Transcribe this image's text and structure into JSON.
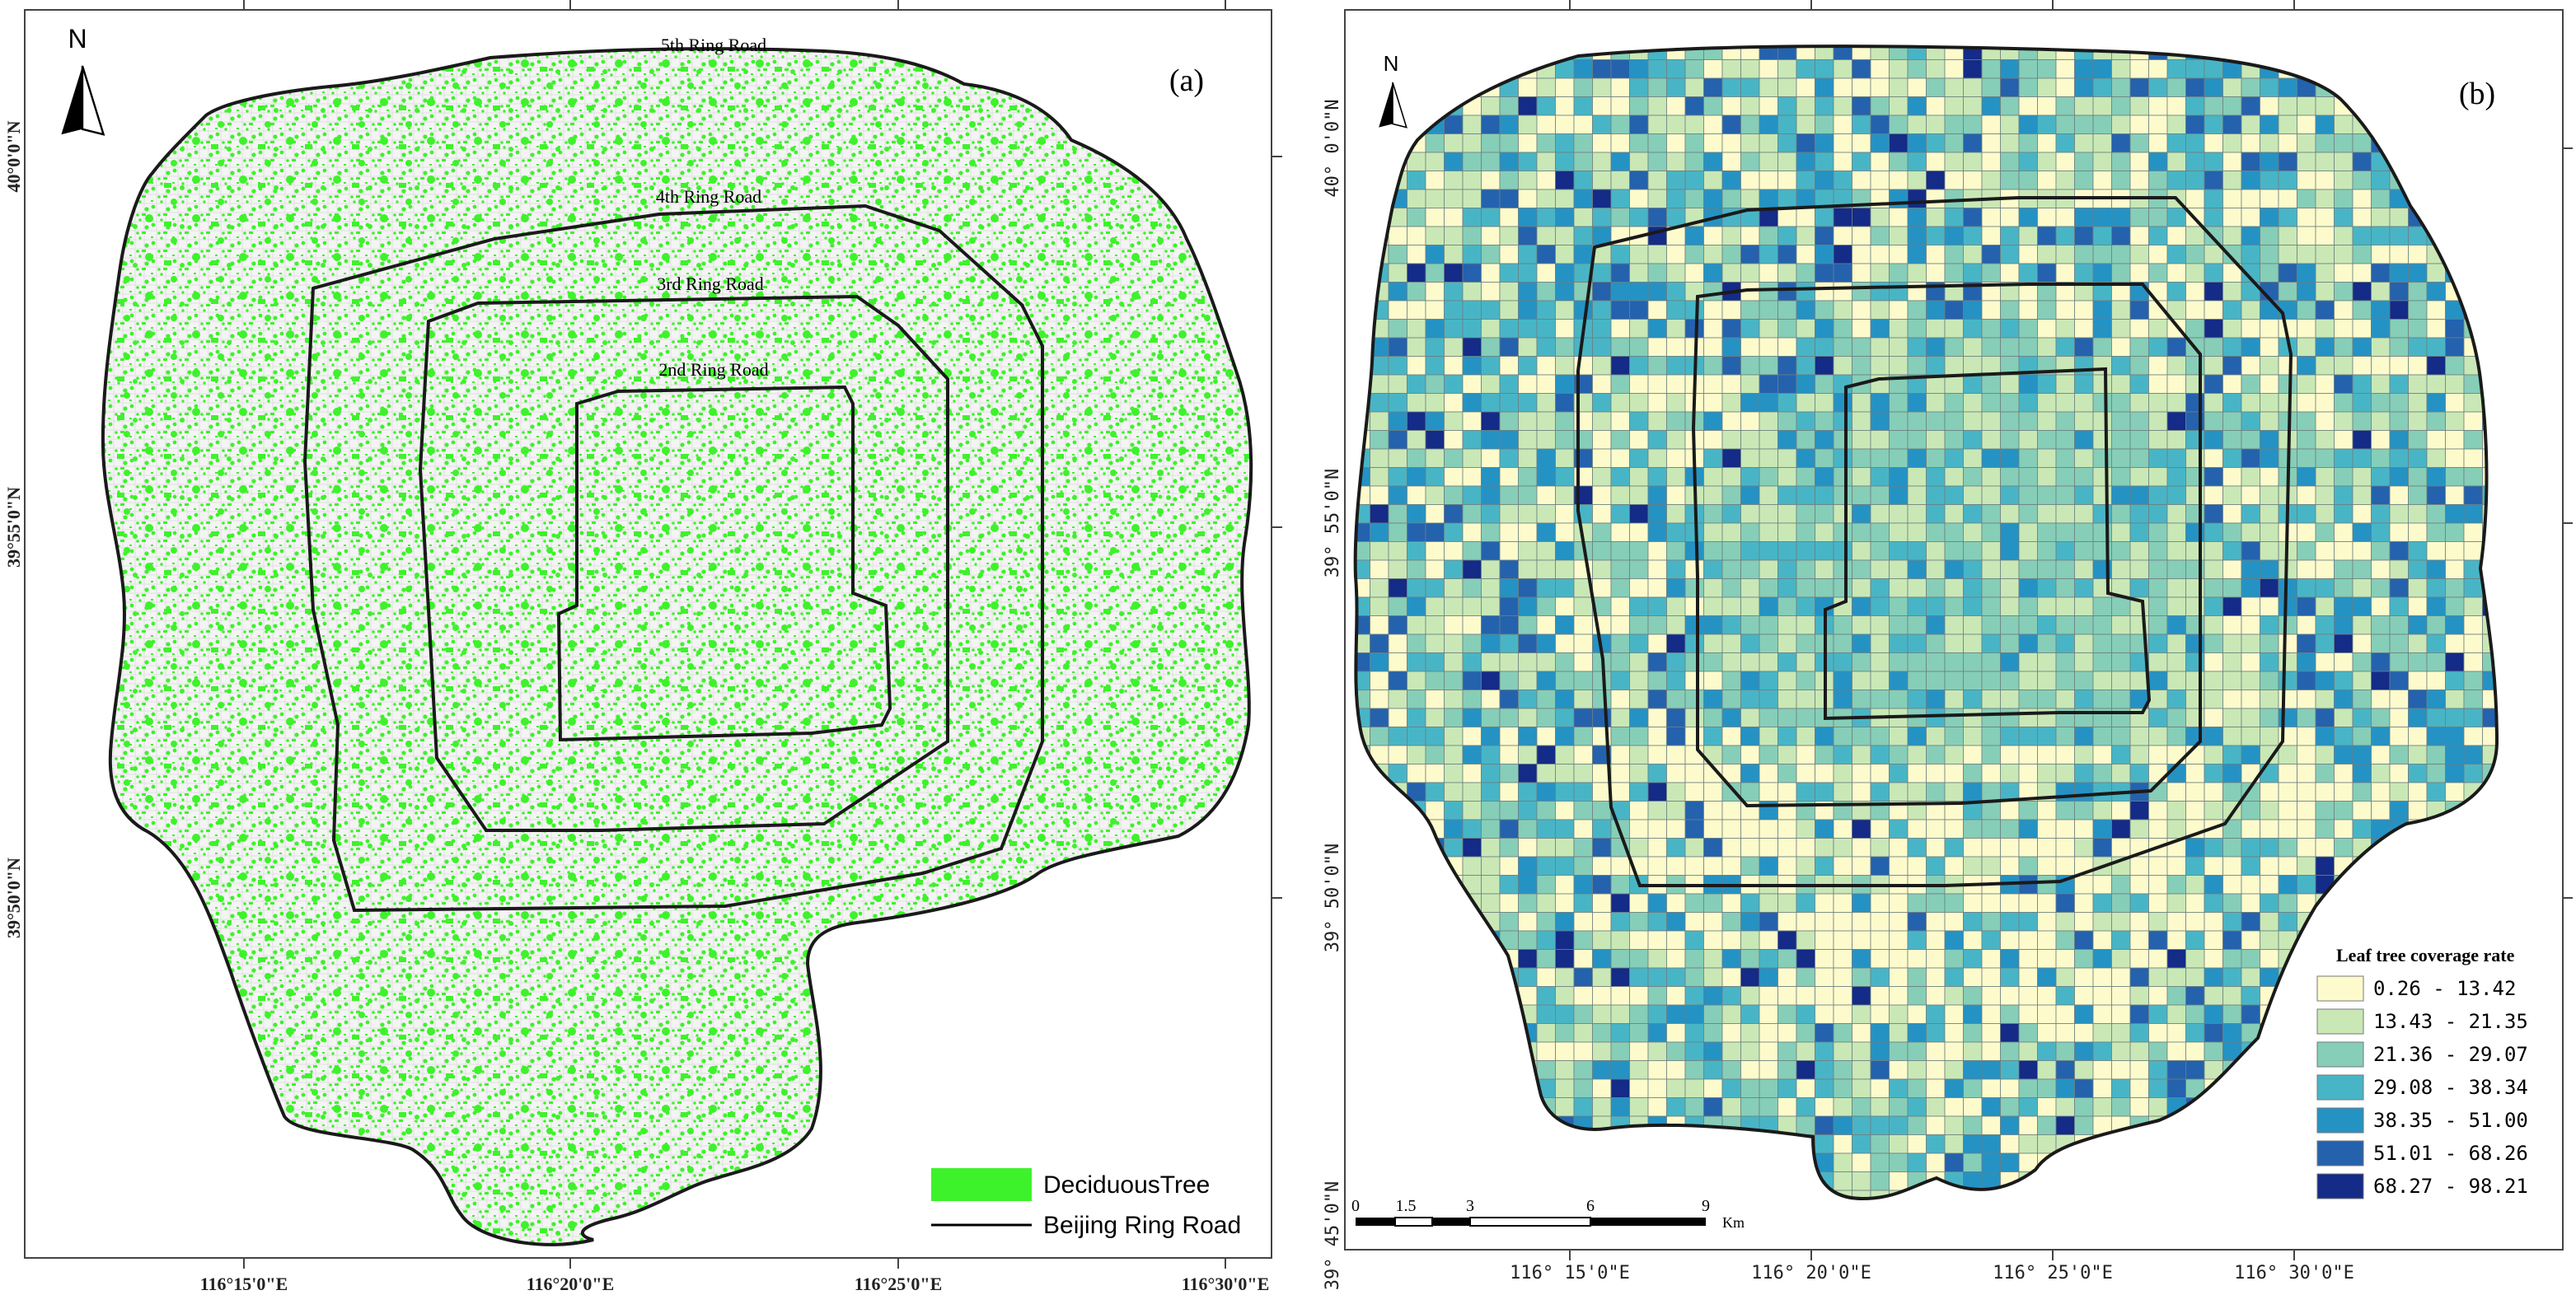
{
  "colors": {
    "deciduous": "#3ef22b",
    "road": "#1a1a1a",
    "frame": "#444444",
    "classes": [
      "#fdfbcc",
      "#c9e8b6",
      "#86ceb8",
      "#48b5c6",
      "#2592c4",
      "#2462ad",
      "#142b87"
    ]
  },
  "panel_a": {
    "label": "(a)",
    "north": "N",
    "ring_roads": [
      "5th Ring Road",
      "4th Ring Road",
      "3rd Ring Road",
      "2nd Ring Road"
    ],
    "lon_labels": [
      "116°15'0\"E",
      "116°20'0\"E",
      "116°25'0\"E",
      "116°30'0\"E"
    ],
    "lat_labels": [
      "40°0'0\"N",
      "39°55'0\"N",
      "39°50'0\"N"
    ],
    "legend": {
      "tree_label": "DeciduousTree",
      "road_label": "Beijing Ring Road"
    }
  },
  "panel_b": {
    "label": "(b)",
    "north": "N",
    "lon_labels": [
      "116° 15'0\"E",
      "116° 20'0\"E",
      "116° 25'0\"E",
      "116° 30'0\"E"
    ],
    "lat_labels": [
      "40° 0'0\"N",
      "39° 55'0\"N",
      "39° 50'0\"N",
      "39° 45'0\"N"
    ],
    "scale_ticks": [
      "0",
      "1.5",
      "3",
      "6",
      "9"
    ],
    "scale_unit": "Km",
    "legend": {
      "title": "Leaf tree coverage rate",
      "classes": [
        "0.26 - 13.42",
        "13.43 - 21.35",
        "21.36 - 29.07",
        "29.08 - 38.34",
        "38.35 - 51.00",
        "51.01 - 68.26",
        "68.27 - 98.21"
      ]
    }
  }
}
